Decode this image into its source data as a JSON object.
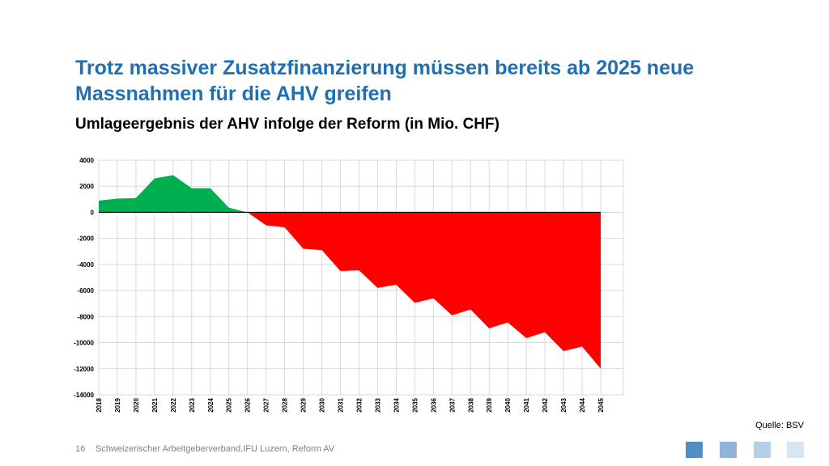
{
  "header": {
    "title": "Trotz massiver Zusatzfinanzierung müssen bereits ab 2025 neue Massnahmen für die AHV greifen",
    "subtitle": "Umlageergebnis der AHV infolge der Reform (in Mio. CHF)"
  },
  "source": "Quelle: BSV",
  "footer": {
    "page_number": "16",
    "text": "Schweizerischer Arbeitgeberverband,IFU Luzern, Reform AV"
  },
  "colors": {
    "title": "#1f6fb4",
    "positive": "#00b050",
    "negative": "#ff0000",
    "squares": [
      "#4e8fc6",
      "#8db4da",
      "#b4cfe8",
      "#d7e6f4"
    ]
  },
  "chart_data": {
    "type": "area",
    "title": "",
    "xlabel": "",
    "ylabel": "",
    "ylim": [
      -14000,
      4000
    ],
    "yticks": [
      4000,
      2000,
      0,
      -2000,
      -4000,
      -6000,
      -8000,
      -10000,
      -12000,
      -14000
    ],
    "grid": true,
    "x": [
      "2018",
      "2019",
      "2020",
      "2021",
      "2022",
      "2023",
      "2024",
      "2025",
      "2026",
      "2027",
      "2028",
      "2029",
      "2030",
      "2031",
      "2032",
      "2033",
      "2034",
      "2035",
      "2036",
      "2037",
      "2038",
      "2039",
      "2040",
      "2041",
      "2042",
      "2043",
      "2044",
      "2045"
    ],
    "values": [
      900,
      1050,
      1100,
      2600,
      2850,
      1850,
      1850,
      350,
      0,
      -1000,
      -1150,
      -2800,
      -2900,
      -4500,
      -4450,
      -5800,
      -5550,
      -6950,
      -6600,
      -7900,
      -7450,
      -8900,
      -8450,
      -9650,
      -9200,
      -10650,
      -10300,
      -12000
    ]
  }
}
